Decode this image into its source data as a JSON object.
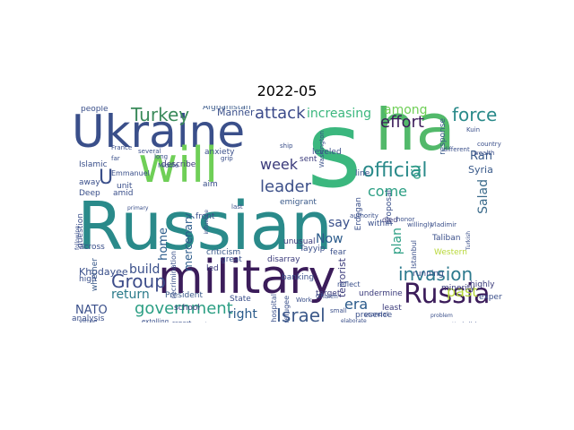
{
  "title": "2022-05",
  "words": [
    {
      "text": "Russian",
      "color": "#2a8a8a"
    },
    {
      "text": "military",
      "color": "#3b1c5a"
    },
    {
      "text": "Ukraine",
      "color": "#3a4f8a"
    },
    {
      "text": "ha",
      "color": "#52b96a"
    },
    {
      "text": "Russia",
      "color": "#3b1c5a"
    },
    {
      "text": "will",
      "color": "#6fcf57"
    },
    {
      "text": "s",
      "color": "#3bb77e"
    },
    {
      "text": "official",
      "color": "#2a8a8a"
    },
    {
      "text": "government",
      "color": "#2c9f84"
    },
    {
      "text": "invasion",
      "color": "#2d7a8e"
    },
    {
      "text": "Israel",
      "color": "#3d5a8a"
    },
    {
      "text": "Group",
      "color": "#3d4d8a"
    },
    {
      "text": "leader",
      "color": "#3d5089"
    },
    {
      "text": "force",
      "color": "#2a8a8a"
    },
    {
      "text": "Turkey",
      "color": "#3a8a5a"
    },
    {
      "text": "attack",
      "color": "#3b4a8a"
    },
    {
      "text": "effort",
      "color": "#3b1c5a"
    },
    {
      "text": "increasing",
      "color": "#3bb77e"
    },
    {
      "text": "among",
      "color": "#6fcf57"
    },
    {
      "text": "week",
      "color": "#3a3a7a"
    },
    {
      "text": "come",
      "color": "#2c9f84"
    },
    {
      "text": "era",
      "color": "#2a5a8a"
    },
    {
      "text": "past",
      "color": "#b8d83a"
    },
    {
      "text": "U",
      "color": "#3a4f8a"
    },
    {
      "text": "return",
      "color": "#2a7a8a"
    },
    {
      "text": "build",
      "color": "#3a4f8a"
    },
    {
      "text": "right",
      "color": "#2a5a8a"
    },
    {
      "text": "NATO",
      "color": "#3a4f8a"
    },
    {
      "text": "say",
      "color": "#3a4f8a"
    },
    {
      "text": "Now",
      "color": "#2a5a8a"
    },
    {
      "text": "home",
      "color": "#2a5a8a"
    },
    {
      "text": "oil",
      "color": "#2c9f84"
    },
    {
      "text": "plan",
      "color": "#2c9f84"
    },
    {
      "text": "Salad",
      "color": "#3a6a8a"
    },
    {
      "text": "Ran",
      "color": "#3a5a8a"
    },
    {
      "text": "Syria",
      "color": "#3a5a8a"
    },
    {
      "text": "Khodayee",
      "color": "#3a4f8a"
    },
    {
      "text": "mercenary",
      "color": "#2a5a8a"
    },
    {
      "text": "terrorist",
      "color": "#3a3a7a"
    },
    {
      "text": "Manner",
      "color": "#3a4f8a"
    },
    {
      "text": "Afghanistan",
      "color": "#3a5a8a"
    },
    {
      "text": "people",
      "color": "#3a4f8a"
    },
    {
      "text": "Islamic",
      "color": "#3a4f8a"
    },
    {
      "text": "describe",
      "color": "#3a3a7a"
    },
    {
      "text": "criticism",
      "color": "#3a5a8a"
    },
    {
      "text": "emigrant",
      "color": "#3a5a8a"
    },
    {
      "text": "banking",
      "color": "#3a4f8a"
    },
    {
      "text": "unusual",
      "color": "#3a3a7a"
    },
    {
      "text": "within",
      "color": "#3a4f8a"
    },
    {
      "text": "Western",
      "color": "#b8d83a"
    },
    {
      "text": "Taliban",
      "color": "#3a4f8a"
    },
    {
      "text": "President",
      "color": "#3a5a8a"
    },
    {
      "text": "State",
      "color": "#3a4f8a"
    },
    {
      "text": "target",
      "color": "#3a3a7a"
    },
    {
      "text": "undermine",
      "color": "#3a3a7a"
    },
    {
      "text": "running",
      "color": "#3a4f8a"
    },
    {
      "text": "minority",
      "color": "#3a3a7a"
    },
    {
      "text": "expert",
      "color": "#3a4f8a"
    },
    {
      "text": "highly",
      "color": "#3a3a7a"
    },
    {
      "text": "analysis",
      "color": "#3a4f8a"
    },
    {
      "text": "school",
      "color": "#3a3a7a"
    },
    {
      "text": "presence",
      "color": "#3a4f8a"
    },
    {
      "text": "least",
      "color": "#3a3a7a"
    },
    {
      "text": "question",
      "color": "#3a4f8a"
    },
    {
      "text": "whether",
      "color": "#3a5a8a"
    },
    {
      "text": "across",
      "color": "#3a4f8a"
    },
    {
      "text": "away",
      "color": "#3a4f8a"
    },
    {
      "text": "Deep",
      "color": "#3a4f8a"
    },
    {
      "text": "amid",
      "color": "#3a4f8a"
    },
    {
      "text": "aim",
      "color": "#3a4f8a"
    },
    {
      "text": "unit",
      "color": "#3a4f8a"
    },
    {
      "text": "high",
      "color": "#3a4f8a"
    },
    {
      "text": "recrimination",
      "color": "#3a4f8a"
    },
    {
      "text": "front",
      "color": "#3a4f8a"
    },
    {
      "text": "fear",
      "color": "#3a4f8a"
    },
    {
      "text": "Erdogan",
      "color": "#3a4f8a"
    },
    {
      "text": "proposal",
      "color": "#3a4f8a"
    },
    {
      "text": "response",
      "color": "#3a5a8a"
    },
    {
      "text": "disarray",
      "color": "#3a3a7a"
    },
    {
      "text": "anxiety",
      "color": "#3a4f8a"
    },
    {
      "text": "leveled",
      "color": "#3a4f8a"
    },
    {
      "text": "sent",
      "color": "#3a3a7a"
    },
    {
      "text": "line",
      "color": "#3a4f8a"
    },
    {
      "text": "Tayyip",
      "color": "#3a4f8a"
    },
    {
      "text": "led",
      "color": "#3a3a7a"
    },
    {
      "text": "great",
      "color": "#3a4f8a"
    },
    {
      "text": "died",
      "color": "#3a3a7a"
    },
    {
      "text": "hospital",
      "color": "#3a4f8a"
    },
    {
      "text": "refugee",
      "color": "#3a4f8a"
    },
    {
      "text": "Istanbul",
      "color": "#3a4f8a"
    },
    {
      "text": "Emmanuel",
      "color": "#3a4f8a"
    },
    {
      "text": "Victory",
      "color": "#3a4f8a"
    },
    {
      "text": "report",
      "color": "#3a4f8a"
    },
    {
      "text": "extolling",
      "color": "#3a4f8a"
    },
    {
      "text": "reflect",
      "color": "#3a4f8a"
    },
    {
      "text": "Monday",
      "color": "#3a4f8a"
    },
    {
      "text": "virtue",
      "color": "#3a4f8a"
    },
    {
      "text": "scandal",
      "color": "#3a4f8a"
    },
    {
      "text": "authority",
      "color": "#3a4f8a"
    },
    {
      "text": "honor",
      "color": "#3a4f8a"
    },
    {
      "text": "willingly",
      "color": "#3a4f8a"
    },
    {
      "text": "Vladimir",
      "color": "#3a4f8a"
    },
    {
      "text": "different",
      "color": "#3a4f8a"
    },
    {
      "text": "wealth",
      "color": "#3a4f8a"
    },
    {
      "text": "country",
      "color": "#3a4f8a"
    },
    {
      "text": "France",
      "color": "#3a4f8a"
    },
    {
      "text": "several",
      "color": "#3a4f8a"
    },
    {
      "text": "far",
      "color": "#3a4f8a"
    },
    {
      "text": "long",
      "color": "#3a4f8a"
    },
    {
      "text": "Middle",
      "color": "#3a4f8a"
    },
    {
      "text": "grip",
      "color": "#3a4f8a"
    },
    {
      "text": "ship",
      "color": "#3a4f8a"
    },
    {
      "text": "Washington",
      "color": "#3a4f8a"
    },
    {
      "text": "Kuin",
      "color": "#3a4f8a"
    },
    {
      "text": "primary",
      "color": "#3a4f8a"
    },
    {
      "text": "Ghaleh",
      "color": "#3a4f8a"
    },
    {
      "text": "Work",
      "color": "#3a4f8a"
    },
    {
      "text": "small",
      "color": "#3a4f8a"
    },
    {
      "text": "elaborate",
      "color": "#3a4f8a"
    },
    {
      "text": "problem",
      "color": "#3a4f8a"
    },
    {
      "text": "Hezbollah",
      "color": "#3a4f8a"
    },
    {
      "text": "Turkish",
      "color": "#3a4f8a"
    },
    {
      "text": "following",
      "color": "#3a4f8a"
    },
    {
      "text": "influence",
      "color": "#3a4f8a"
    },
    {
      "text": "last",
      "color": "#3a4f8a"
    }
  ]
}
